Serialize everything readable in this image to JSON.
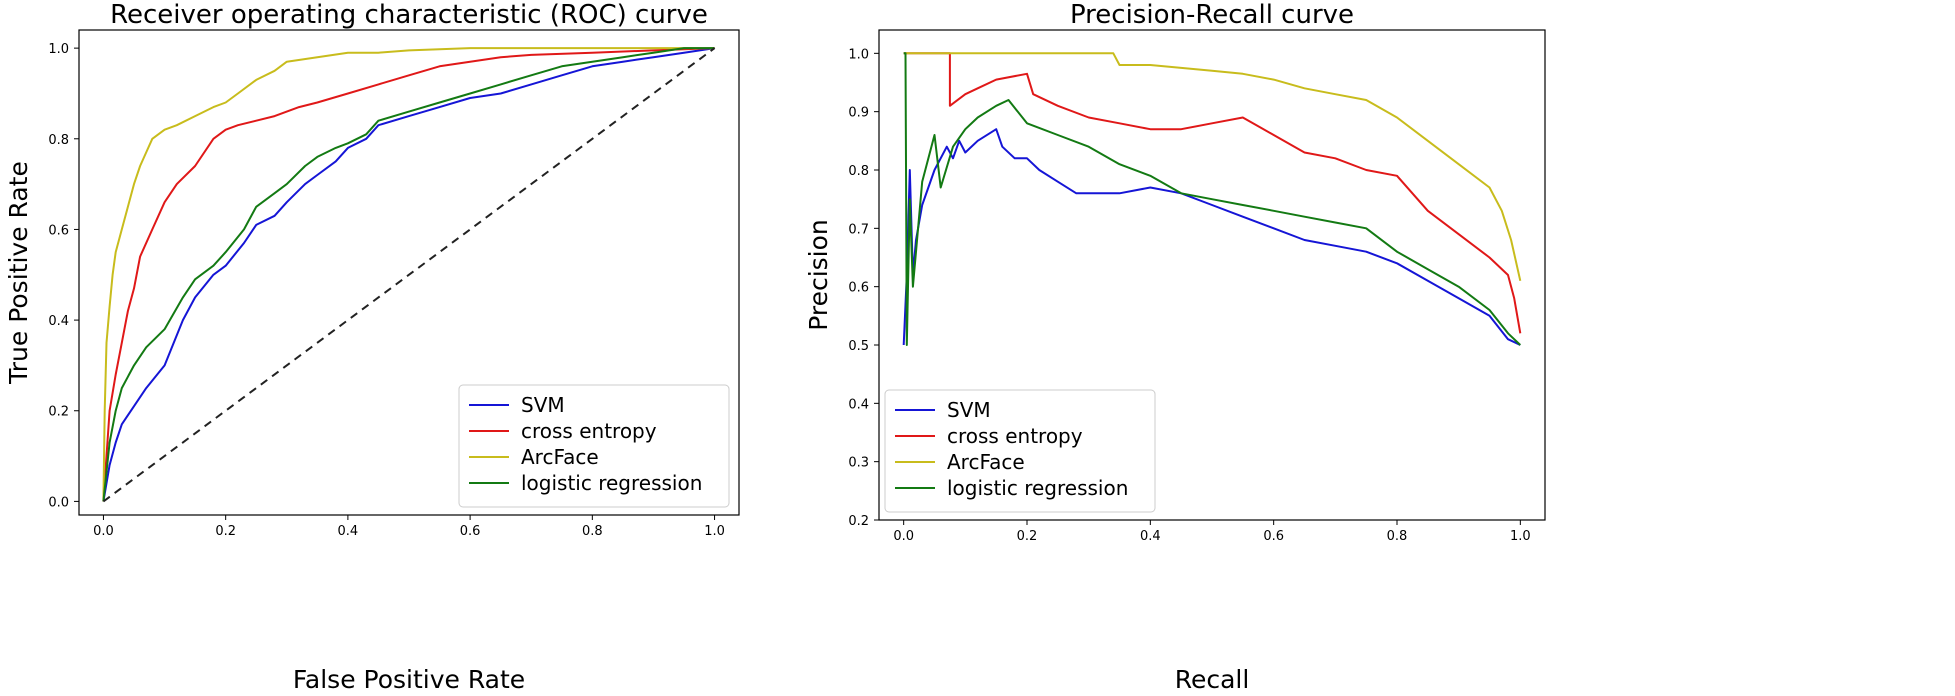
{
  "chart_data": [
    {
      "type": "line",
      "title": "Receiver operating characteristic (ROC) curve",
      "xlabel": "False Positive Rate",
      "ylabel": "True Positive Rate",
      "xlim": [
        -0.04,
        1.04
      ],
      "ylim": [
        -0.03,
        1.04
      ],
      "xticks": [
        0.0,
        0.2,
        0.4,
        0.6,
        0.8,
        1.0
      ],
      "yticks": [
        0.0,
        0.2,
        0.4,
        0.6,
        0.8,
        1.0
      ],
      "tick_labels_x": [
        "0.0",
        "0.2",
        "0.4",
        "0.6",
        "0.8",
        "1.0"
      ],
      "tick_labels_y": [
        "0.0",
        "0.2",
        "0.4",
        "0.6",
        "0.8",
        "1.0"
      ],
      "legend_position": "lower-right",
      "series": [
        {
          "name": "SVM",
          "color": "#1515d6",
          "x": [
            0,
            0.01,
            0.02,
            0.03,
            0.05,
            0.07,
            0.1,
            0.13,
            0.15,
            0.18,
            0.2,
            0.23,
            0.25,
            0.28,
            0.3,
            0.33,
            0.35,
            0.38,
            0.4,
            0.43,
            0.45,
            0.5,
            0.55,
            0.6,
            0.65,
            0.7,
            0.75,
            0.8,
            0.85,
            0.9,
            0.95,
            1.0
          ],
          "y": [
            0,
            0.08,
            0.13,
            0.17,
            0.21,
            0.25,
            0.3,
            0.4,
            0.45,
            0.5,
            0.52,
            0.57,
            0.61,
            0.63,
            0.66,
            0.7,
            0.72,
            0.75,
            0.78,
            0.8,
            0.83,
            0.85,
            0.87,
            0.89,
            0.9,
            0.92,
            0.94,
            0.96,
            0.97,
            0.98,
            0.99,
            1.0
          ]
        },
        {
          "name": "cross entropy",
          "color": "#e01818",
          "x": [
            0,
            0.005,
            0.01,
            0.02,
            0.03,
            0.04,
            0.05,
            0.06,
            0.08,
            0.1,
            0.12,
            0.15,
            0.18,
            0.2,
            0.22,
            0.25,
            0.28,
            0.3,
            0.32,
            0.35,
            0.4,
            0.45,
            0.5,
            0.55,
            0.6,
            0.65,
            0.7,
            0.8,
            0.9,
            1.0
          ],
          "y": [
            0,
            0.1,
            0.2,
            0.28,
            0.35,
            0.42,
            0.47,
            0.54,
            0.6,
            0.66,
            0.7,
            0.74,
            0.8,
            0.82,
            0.83,
            0.84,
            0.85,
            0.86,
            0.87,
            0.88,
            0.9,
            0.92,
            0.94,
            0.96,
            0.97,
            0.98,
            0.985,
            0.99,
            0.995,
            1.0
          ]
        },
        {
          "name": "ArcFace",
          "color": "#c8bc1c",
          "x": [
            0,
            0.002,
            0.005,
            0.01,
            0.015,
            0.02,
            0.03,
            0.04,
            0.05,
            0.06,
            0.07,
            0.08,
            0.1,
            0.12,
            0.15,
            0.18,
            0.2,
            0.22,
            0.25,
            0.28,
            0.3,
            0.35,
            0.4,
            0.45,
            0.5,
            0.6,
            0.7,
            0.8,
            0.9,
            1.0
          ],
          "y": [
            0,
            0.2,
            0.35,
            0.43,
            0.5,
            0.55,
            0.6,
            0.65,
            0.7,
            0.74,
            0.77,
            0.8,
            0.82,
            0.83,
            0.85,
            0.87,
            0.88,
            0.9,
            0.93,
            0.95,
            0.97,
            0.98,
            0.99,
            0.99,
            0.995,
            1.0,
            1.0,
            1.0,
            1.0,
            1.0
          ]
        },
        {
          "name": "logistic regression",
          "color": "#137a13",
          "x": [
            0,
            0.01,
            0.02,
            0.03,
            0.05,
            0.07,
            0.1,
            0.13,
            0.15,
            0.18,
            0.2,
            0.23,
            0.25,
            0.28,
            0.3,
            0.33,
            0.35,
            0.38,
            0.4,
            0.43,
            0.45,
            0.5,
            0.55,
            0.6,
            0.65,
            0.7,
            0.75,
            0.8,
            0.85,
            0.9,
            0.95,
            1.0
          ],
          "y": [
            0,
            0.13,
            0.2,
            0.25,
            0.3,
            0.34,
            0.38,
            0.45,
            0.49,
            0.52,
            0.55,
            0.6,
            0.65,
            0.68,
            0.7,
            0.74,
            0.76,
            0.78,
            0.79,
            0.81,
            0.84,
            0.86,
            0.88,
            0.9,
            0.92,
            0.94,
            0.96,
            0.97,
            0.98,
            0.99,
            1.0,
            1.0
          ]
        },
        {
          "name": "chance",
          "color": "#222222",
          "dashed": true,
          "in_legend": false,
          "x": [
            0,
            1
          ],
          "y": [
            0,
            1
          ]
        }
      ]
    },
    {
      "type": "line",
      "title": "Precision-Recall curve",
      "xlabel": "Recall",
      "ylabel": "Precision",
      "xlim": [
        -0.04,
        1.04
      ],
      "ylim": [
        0.2,
        1.04
      ],
      "xticks": [
        0.0,
        0.2,
        0.4,
        0.6,
        0.8,
        1.0
      ],
      "yticks": [
        0.2,
        0.3,
        0.4,
        0.5,
        0.6,
        0.7,
        0.8,
        0.9,
        1.0
      ],
      "tick_labels_x": [
        "0.0",
        "0.2",
        "0.4",
        "0.6",
        "0.8",
        "1.0"
      ],
      "tick_labels_y": [
        "0.2",
        "0.3",
        "0.4",
        "0.5",
        "0.6",
        "0.7",
        "0.8",
        "0.9",
        "1.0"
      ],
      "legend_position": "lower-left",
      "series": [
        {
          "name": "SVM",
          "color": "#1515d6",
          "x": [
            0.0,
            0.005,
            0.01,
            0.015,
            0.02,
            0.03,
            0.05,
            0.07,
            0.08,
            0.09,
            0.1,
            0.12,
            0.15,
            0.16,
            0.18,
            0.2,
            0.22,
            0.25,
            0.28,
            0.3,
            0.35,
            0.4,
            0.45,
            0.5,
            0.55,
            0.6,
            0.65,
            0.7,
            0.75,
            0.8,
            0.85,
            0.9,
            0.95,
            0.98,
            1.0
          ],
          "y": [
            0.5,
            0.62,
            0.8,
            0.62,
            0.68,
            0.74,
            0.8,
            0.84,
            0.82,
            0.85,
            0.83,
            0.85,
            0.87,
            0.84,
            0.82,
            0.82,
            0.8,
            0.78,
            0.76,
            0.76,
            0.76,
            0.77,
            0.76,
            0.74,
            0.72,
            0.7,
            0.68,
            0.67,
            0.66,
            0.64,
            0.61,
            0.58,
            0.55,
            0.51,
            0.5
          ]
        },
        {
          "name": "cross entropy",
          "color": "#e01818",
          "x": [
            0.0,
            0.075,
            0.075,
            0.1,
            0.12,
            0.15,
            0.2,
            0.21,
            0.25,
            0.3,
            0.35,
            0.4,
            0.45,
            0.5,
            0.55,
            0.6,
            0.65,
            0.7,
            0.75,
            0.8,
            0.85,
            0.9,
            0.95,
            0.98,
            0.99,
            1.0
          ],
          "y": [
            1.0,
            1.0,
            0.91,
            0.93,
            0.94,
            0.955,
            0.965,
            0.93,
            0.91,
            0.89,
            0.88,
            0.87,
            0.87,
            0.88,
            0.89,
            0.86,
            0.83,
            0.82,
            0.8,
            0.79,
            0.73,
            0.69,
            0.65,
            0.62,
            0.58,
            0.52
          ]
        },
        {
          "name": "ArcFace",
          "color": "#c8bc1c",
          "x": [
            0.0,
            0.34,
            0.35,
            0.4,
            0.45,
            0.5,
            0.55,
            0.6,
            0.65,
            0.7,
            0.75,
            0.8,
            0.85,
            0.9,
            0.95,
            0.97,
            0.985,
            1.0
          ],
          "y": [
            1.0,
            1.0,
            0.98,
            0.98,
            0.975,
            0.97,
            0.965,
            0.955,
            0.94,
            0.93,
            0.92,
            0.89,
            0.85,
            0.81,
            0.77,
            0.73,
            0.68,
            0.61
          ]
        },
        {
          "name": "logistic regression",
          "color": "#137a13",
          "x": [
            0.0,
            0.003,
            0.005,
            0.01,
            0.015,
            0.03,
            0.05,
            0.06,
            0.08,
            0.1,
            0.12,
            0.15,
            0.17,
            0.2,
            0.25,
            0.3,
            0.35,
            0.4,
            0.45,
            0.5,
            0.55,
            0.6,
            0.65,
            0.7,
            0.75,
            0.8,
            0.85,
            0.9,
            0.95,
            0.98,
            1.0
          ],
          "y": [
            1.0,
            1.0,
            0.5,
            0.75,
            0.6,
            0.78,
            0.86,
            0.77,
            0.84,
            0.87,
            0.89,
            0.91,
            0.92,
            0.88,
            0.86,
            0.84,
            0.81,
            0.79,
            0.76,
            0.75,
            0.74,
            0.73,
            0.72,
            0.71,
            0.7,
            0.66,
            0.63,
            0.6,
            0.56,
            0.52,
            0.5
          ]
        }
      ]
    }
  ]
}
